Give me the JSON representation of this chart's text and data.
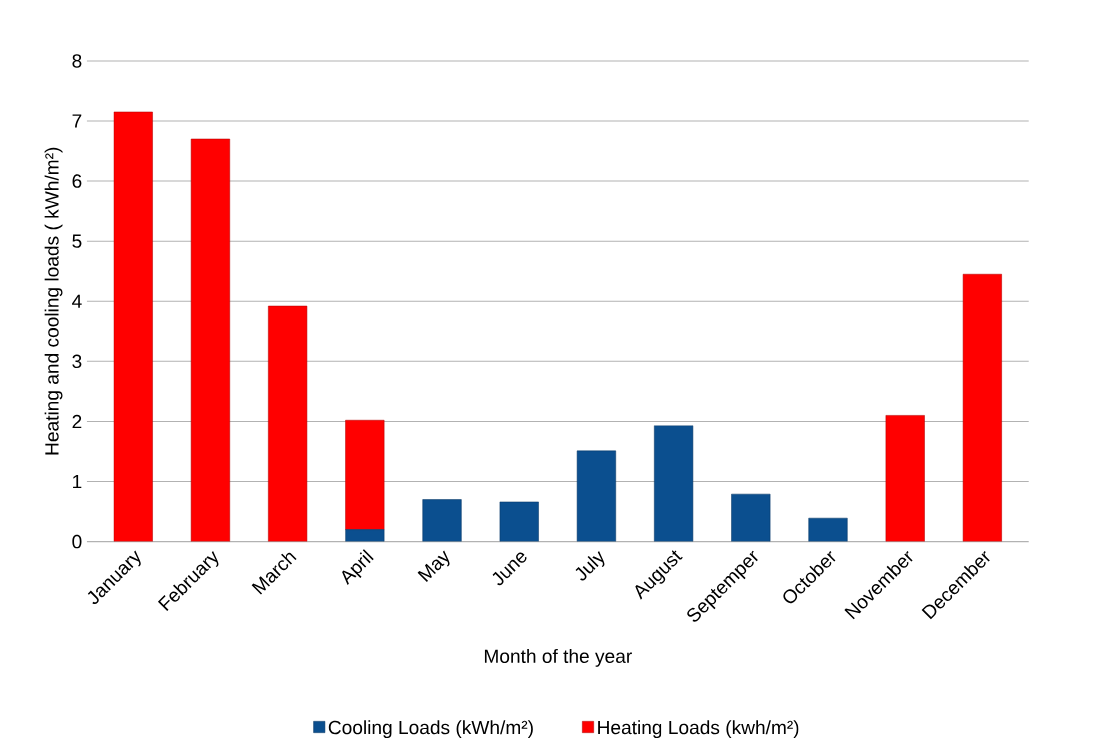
{
  "chart_data": {
    "type": "bar",
    "stacked": true,
    "xlabel": "Month of the year",
    "ylabel": "Heating and cooling loads ( kWh/m²)",
    "categories": [
      "January",
      "February",
      "March",
      "April",
      "May",
      "June",
      "July",
      "August",
      "Septemper",
      "October",
      "November",
      "December"
    ],
    "series": [
      {
        "name": "Cooling Loads (kWh/m²)",
        "color": "#0b4f8f",
        "values": [
          0,
          0,
          0,
          0.2,
          0.7,
          0.66,
          1.51,
          1.93,
          0.79,
          0.39,
          0,
          0
        ]
      },
      {
        "name": "Heating Loads   (kwh/m²)",
        "color": "#ff0000",
        "values": [
          7.15,
          6.7,
          3.92,
          1.82,
          0,
          0,
          0,
          0,
          0,
          0,
          2.1,
          4.45
        ]
      }
    ],
    "ylim": [
      0,
      8
    ],
    "yticks": [
      0,
      1,
      2,
      3,
      4,
      5,
      6,
      7,
      8
    ],
    "grid": "y",
    "legend": "bottom"
  }
}
